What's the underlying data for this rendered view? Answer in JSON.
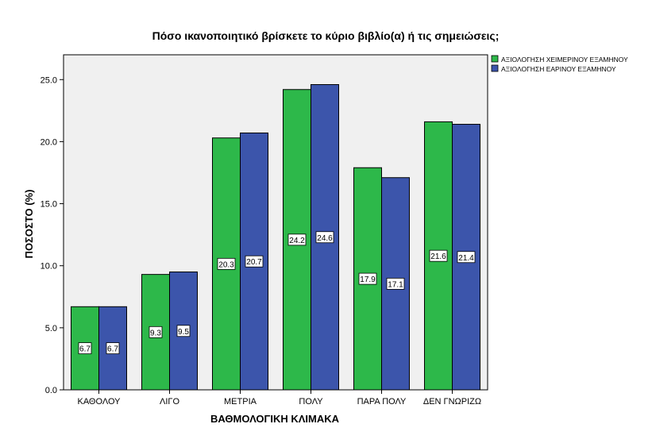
{
  "chart_data": {
    "type": "bar",
    "title": "Πόσο ικανοποιητικό βρίσκετε το κύριο βιβλίο(α) ή τις σημειώσεις;",
    "xlabel": "ΒΑΘΜΟΛΟΓΙΚΗ ΚΛΙΜΑΚΑ",
    "ylabel": "ΠΟΣΟΣΤΟ (%)",
    "ylim": [
      0,
      27
    ],
    "yticks": [
      "0.0",
      "5.0",
      "10.0",
      "15.0",
      "20.0",
      "25.0"
    ],
    "categories": [
      "ΚΑΘΟΛΟΥ",
      "ΛΙΓΟ",
      "ΜΕΤΡΙΑ",
      "ΠΟΛΥ",
      "ΠΑΡΑ ΠΟΛΥ",
      "ΔΕΝ ΓΝΩΡΙΖΩ"
    ],
    "series": [
      {
        "name": "ΑΞΙΟΛΟΓΗΣΗ ΧΕΙΜΕΡΙΝΟΥ ΕΞΑΜΗΝΟΥ",
        "color": "#2db84a",
        "values": [
          6.7,
          9.3,
          20.3,
          24.2,
          17.9,
          21.6
        ],
        "labels": [
          "6.7",
          "9.3",
          "20.3",
          "24.2",
          "17.9",
          "21.6"
        ]
      },
      {
        "name": "ΑΞΙΟΛΟΓΗΣΗ ΕΑΡΙΝΟΥ ΕΞΑΜΗΝΟΥ",
        "color": "#3c55ab",
        "values": [
          6.7,
          9.5,
          20.7,
          24.6,
          17.1,
          21.4
        ],
        "labels": [
          "6.7",
          "9.5",
          "20.7",
          "24.6",
          "17.1",
          "21.4"
        ]
      }
    ],
    "grid": false,
    "legend": "top-right",
    "plot_background": "#f0f0f0"
  }
}
